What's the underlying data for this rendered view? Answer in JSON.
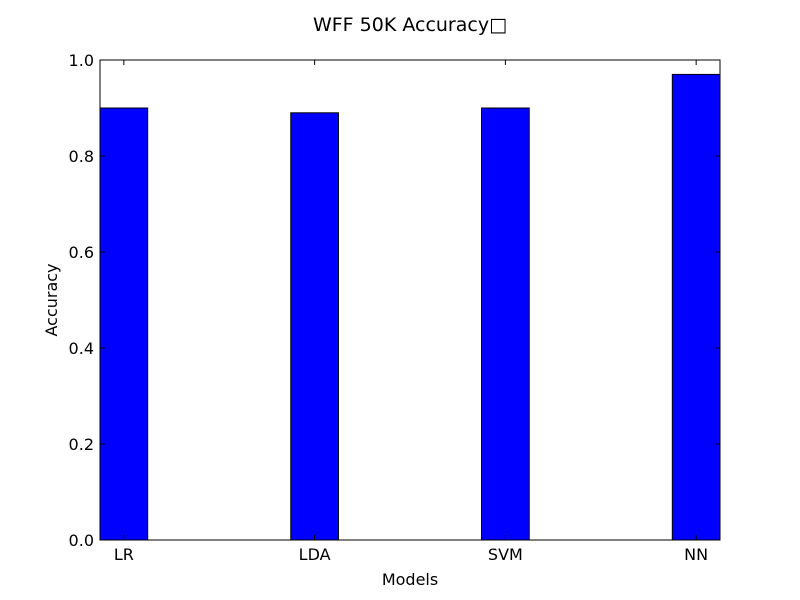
{
  "chart_data": {
    "type": "bar",
    "title": "WFF 50K Accuracy□",
    "xlabel": "Models",
    "ylabel": "Accuracy",
    "categories": [
      "LR",
      "LDA",
      "SVM",
      "NN"
    ],
    "values": [
      0.9,
      0.89,
      0.9,
      0.97
    ],
    "ylim": [
      0.0,
      1.0
    ],
    "yticks": [
      "0.0",
      "0.2",
      "0.4",
      "0.6",
      "0.8",
      "1.0"
    ],
    "grid": false,
    "bar_color": "#0000ff",
    "edge_color": "#000000"
  }
}
